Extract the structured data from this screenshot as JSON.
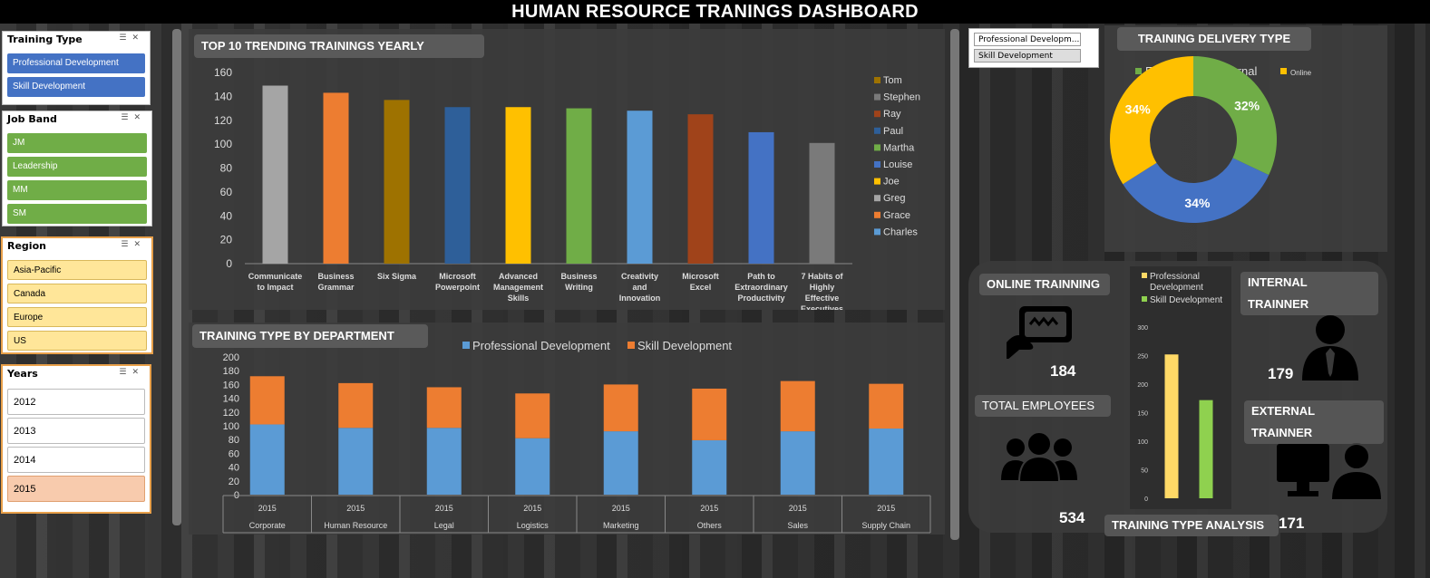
{
  "title": "HUMAN RESOURCE TRANINGS DASHBOARD",
  "slicers": {
    "training_type": {
      "label": "Training Type",
      "items": [
        "Professional Development",
        "Skill Development"
      ]
    },
    "job_band": {
      "label": "Job Band",
      "items": [
        "JM",
        "Leadership",
        "MM",
        "SM"
      ]
    },
    "region": {
      "label": "Region",
      "items": [
        "Asia-Pacific",
        "Canada",
        "Europe",
        "US"
      ]
    },
    "years": {
      "label": "Years",
      "items": [
        "2012",
        "2013",
        "2014",
        "2015"
      ],
      "selected": "2015"
    }
  },
  "right_slicer": {
    "items": [
      "Professional Developm...",
      "Skill Development"
    ]
  },
  "charts": {
    "top10": {
      "title": "TOP 10 TRENDING TRAININGS YEARLY",
      "type": "bar",
      "categories": [
        "Communicate to Impact",
        "Business Grammar",
        "Six Sigma",
        "Microsoft Powerpoint",
        "Advanced Management Skills",
        "Business Writing",
        "Creativity and Innovation",
        "Microsoft Excel",
        "Path to Extraordinary Productivity",
        "7 Habits of Highly Effective Executives"
      ],
      "values": [
        149,
        143,
        137,
        131,
        131,
        130,
        128,
        125,
        110,
        101
      ],
      "colors": [
        "#a5a5a5",
        "#ed7d31",
        "#9e7200",
        "#2e5f99",
        "#ffc000",
        "#70ad47",
        "#5b9bd5",
        "#a0431a",
        "#4472c4",
        "#7a7a7a"
      ],
      "ylim": [
        0,
        160
      ],
      "yticks": [
        0,
        20,
        40,
        60,
        80,
        100,
        120,
        140,
        160
      ],
      "legend": [
        {
          "name": "Tom",
          "color": "#9e7200"
        },
        {
          "name": "Stephen",
          "color": "#7a7a7a"
        },
        {
          "name": "Ray",
          "color": "#a0431a"
        },
        {
          "name": "Paul",
          "color": "#2e5f99"
        },
        {
          "name": "Martha",
          "color": "#70ad47"
        },
        {
          "name": "Louise",
          "color": "#4472c4"
        },
        {
          "name": "Joe",
          "color": "#ffc000"
        },
        {
          "name": "Greg",
          "color": "#a5a5a5"
        },
        {
          "name": "Grace",
          "color": "#ed7d31"
        },
        {
          "name": "Charles",
          "color": "#5b9bd5"
        }
      ]
    },
    "dept": {
      "title": "TRAINING TYPE BY DEPARTMENT",
      "type": "bar",
      "stacked": true,
      "year_label": "2015",
      "categories": [
        "Corporate",
        "Human Resource",
        "Legal",
        "Logistics",
        "Marketing",
        "Others",
        "Sales",
        "Supply Chain"
      ],
      "series": [
        {
          "name": "Professional Development",
          "color": "#5b9bd5",
          "values": [
            102,
            97,
            97,
            82,
            92,
            79,
            92,
            96
          ]
        },
        {
          "name": "Skill Development",
          "color": "#ed7d31",
          "values": [
            70,
            65,
            59,
            65,
            68,
            75,
            73,
            65
          ]
        }
      ],
      "ylim": [
        0,
        200
      ],
      "yticks": [
        0,
        20,
        40,
        60,
        80,
        100,
        120,
        140,
        160,
        180,
        200
      ]
    },
    "delivery": {
      "title": "TRAINING DELIVERY TYPE",
      "type": "pie",
      "slices": [
        {
          "name": "External",
          "value": 32,
          "label": "32%",
          "color": "#70ad47"
        },
        {
          "name": "Internal",
          "value": 34,
          "label": "34%",
          "color": "#4472c4"
        },
        {
          "name": "Online",
          "value": 34,
          "label": "34%",
          "color": "#ffc000"
        }
      ]
    },
    "analysis": {
      "title": "TRAINING TYPE ANALYSIS",
      "type": "bar",
      "categories": [
        "Professional Development",
        "Skill Development"
      ],
      "values": [
        252,
        172
      ],
      "colors": [
        "#ffd966",
        "#8fd14f"
      ],
      "ylim": [
        0,
        300
      ],
      "yticks": [
        0,
        50,
        100,
        150,
        200,
        250,
        300
      ],
      "legend": [
        {
          "name": "Professional Development",
          "color": "#ffd966"
        },
        {
          "name": "Skill Development",
          "color": "#8fd14f"
        }
      ]
    }
  },
  "kpis": {
    "online": {
      "label": "ONLINE TRAINNING",
      "value": "184"
    },
    "employees": {
      "label": "TOTAL EMPLOYEES",
      "value": "534"
    },
    "internal": {
      "label": "INTERNAL TRAINNER",
      "value": "179"
    },
    "external": {
      "label": "EXTERNAL TRAINNER",
      "value": ""
    },
    "analysis_value": "171"
  }
}
